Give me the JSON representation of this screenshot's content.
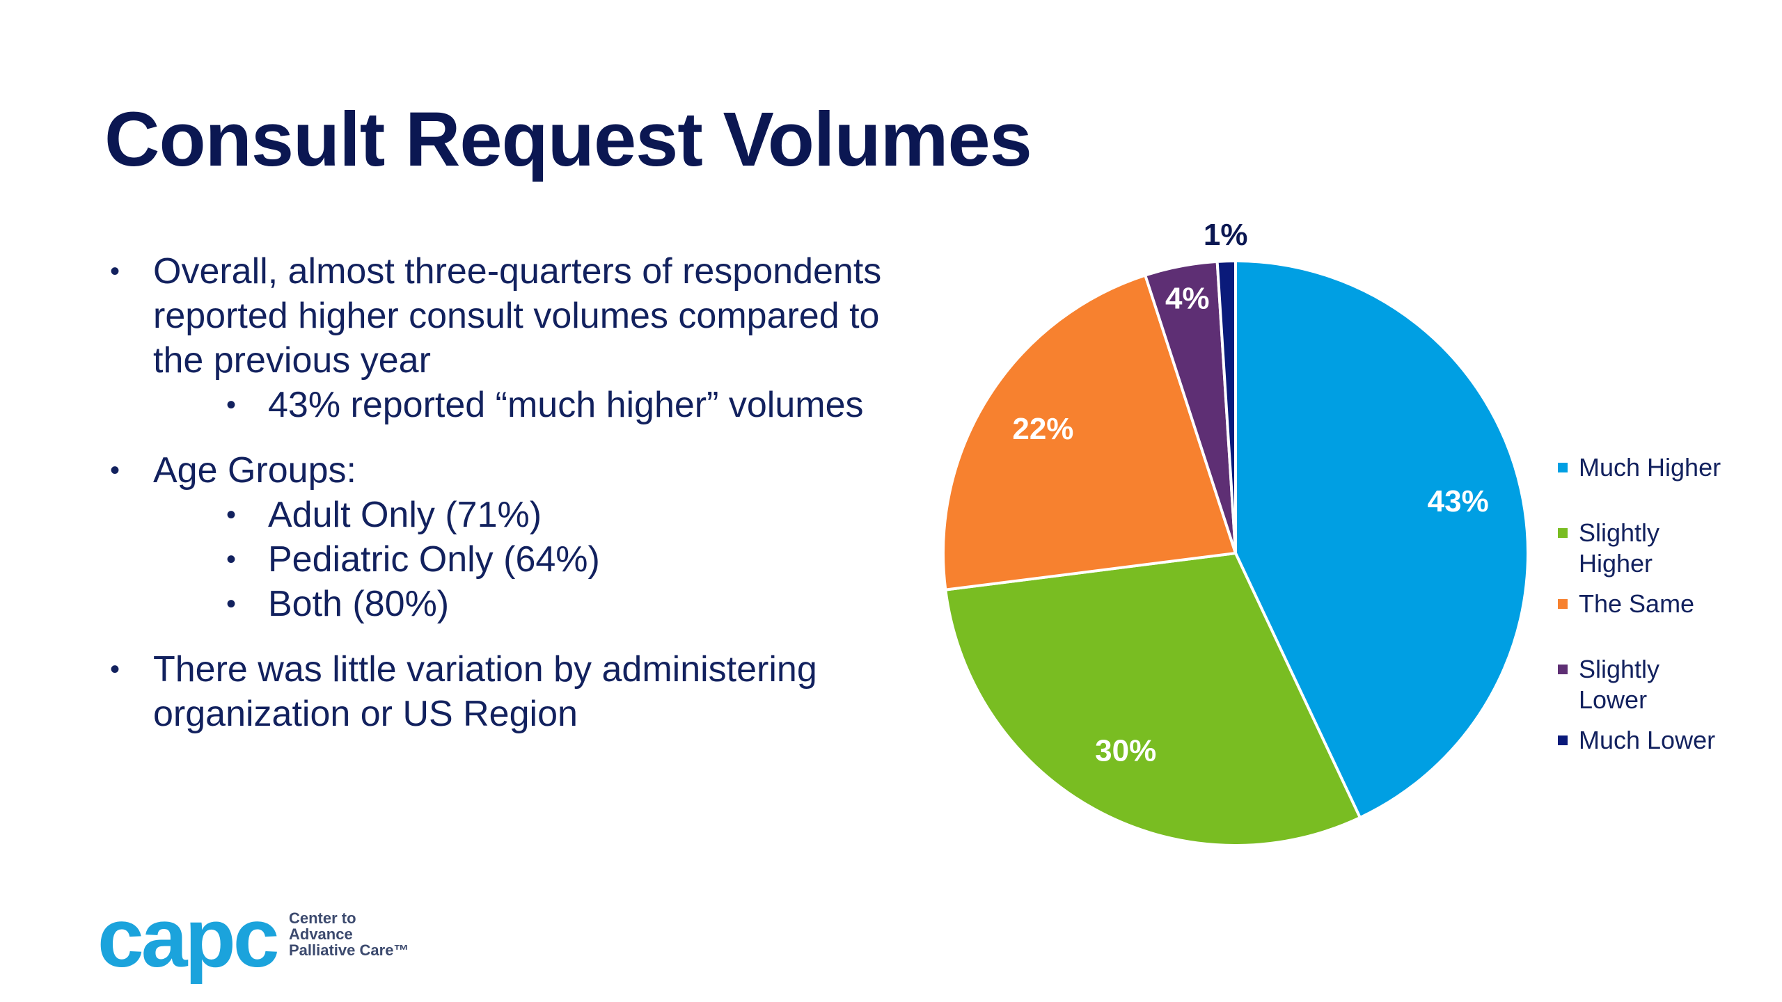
{
  "slide": {
    "title": "Consult Request Volumes",
    "bullets": [
      {
        "text": "Overall, almost three-quarters of respondents reported higher consult volumes compared to the previous year",
        "sub": [
          "43% reported “much higher” volumes"
        ]
      },
      {
        "text": "Age Groups:",
        "sub": [
          "Adult Only (71%)",
          "Pediatric Only (64%)",
          "Both (80%)"
        ]
      },
      {
        "text": "There was little variation by administering organization or US Region",
        "sub": []
      }
    ]
  },
  "logo": {
    "mark": "capc",
    "lines": [
      "Center to",
      "Advance",
      "Palliative Care™"
    ]
  },
  "chart_data": {
    "type": "pie",
    "title": "",
    "categories": [
      "Much Higher",
      "Slightly Higher",
      "The Same",
      "Slightly Lower",
      "Much Lower"
    ],
    "values": [
      43,
      30,
      22,
      4,
      1
    ],
    "labels": [
      "43%",
      "30%",
      "22%",
      "4%",
      "1%"
    ],
    "colors": [
      "#009fe3",
      "#79bd22",
      "#f7812f",
      "#5e2f74",
      "#0a1a7a"
    ],
    "start": "12 o'clock, clockwise",
    "legend": "right"
  }
}
